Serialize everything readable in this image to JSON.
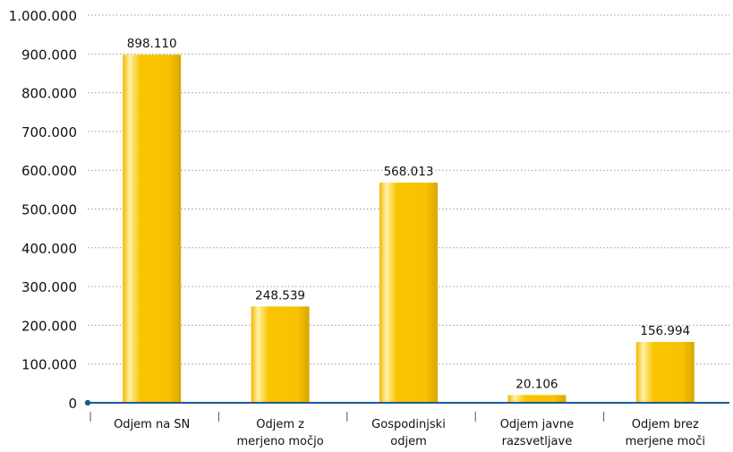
{
  "chart_data": {
    "type": "bar",
    "categories": [
      [
        "Odjem na SN"
      ],
      [
        "Odjem z",
        "merjeno močjo"
      ],
      [
        "Gospodinjski",
        "odjem"
      ],
      [
        "Odjem javne",
        "razsvetljave"
      ],
      [
        "Odjem brez",
        "merjene moči"
      ]
    ],
    "values": [
      898110,
      248539,
      568013,
      20106,
      156994
    ],
    "data_labels": [
      "898.110",
      "248.539",
      "568.013",
      "20.106",
      "156.994"
    ],
    "ylim": [
      0,
      1000000
    ],
    "y_ticks": [
      0,
      100000,
      200000,
      300000,
      400000,
      500000,
      600000,
      700000,
      800000,
      900000,
      1000000
    ],
    "y_tick_labels": [
      "0",
      "100.000",
      "200.000",
      "300.000",
      "400.000",
      "500.000",
      "600.000",
      "700.000",
      "800.000",
      "900.000",
      "1.000.000"
    ],
    "title": "",
    "xlabel": "",
    "ylabel": "",
    "grid": "horizontal dotted",
    "legend": "none",
    "colors": {
      "bar_main": "#f7c300",
      "bar_highlight": "#fff1a8",
      "bar_shadow": "#c89a00",
      "axis": "#1a5d8f",
      "grid": "#9a9a9a",
      "text": "#111111"
    }
  }
}
